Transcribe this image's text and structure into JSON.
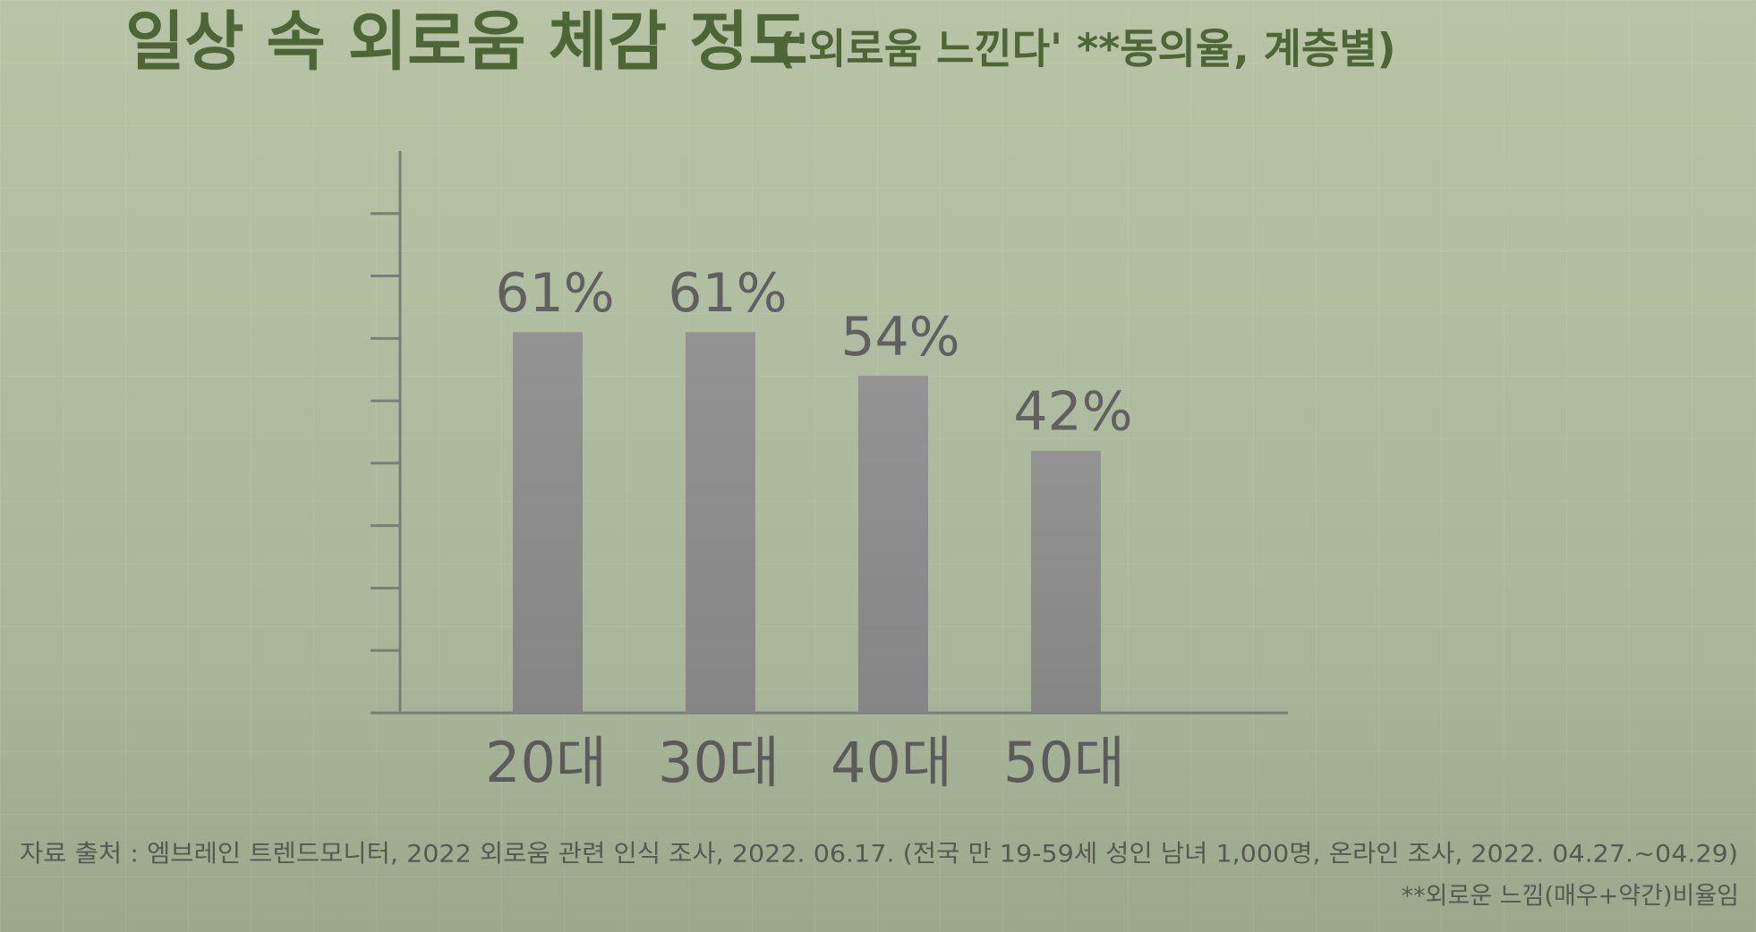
{
  "chart_data": {
    "type": "bar",
    "title": "일상 속 외로움 체감 정도",
    "subtitle": "('외로움 느낀다' **동의율, 계층별)",
    "categories": [
      "20대",
      "30대",
      "40대",
      "50대"
    ],
    "values": [
      61,
      61,
      54,
      42
    ],
    "value_labels": [
      "61%",
      "61%",
      "54%",
      "42%"
    ],
    "color": "#8f8f8f",
    "ylim": [
      0,
      90
    ],
    "yticks": [
      10,
      20,
      30,
      40,
      50,
      60,
      70,
      80
    ],
    "source": "자료 출처 : 엠브레인 트렌드모니터, 2022 외로움 관련 인식 조사, 2022. 06.17. (전국 만 19-59세 성인 남녀 1,000명, 온라인 조사, 2022. 04.27.~04.29)",
    "footnote": "**외로운 느낌(매우+약간)비율임"
  }
}
